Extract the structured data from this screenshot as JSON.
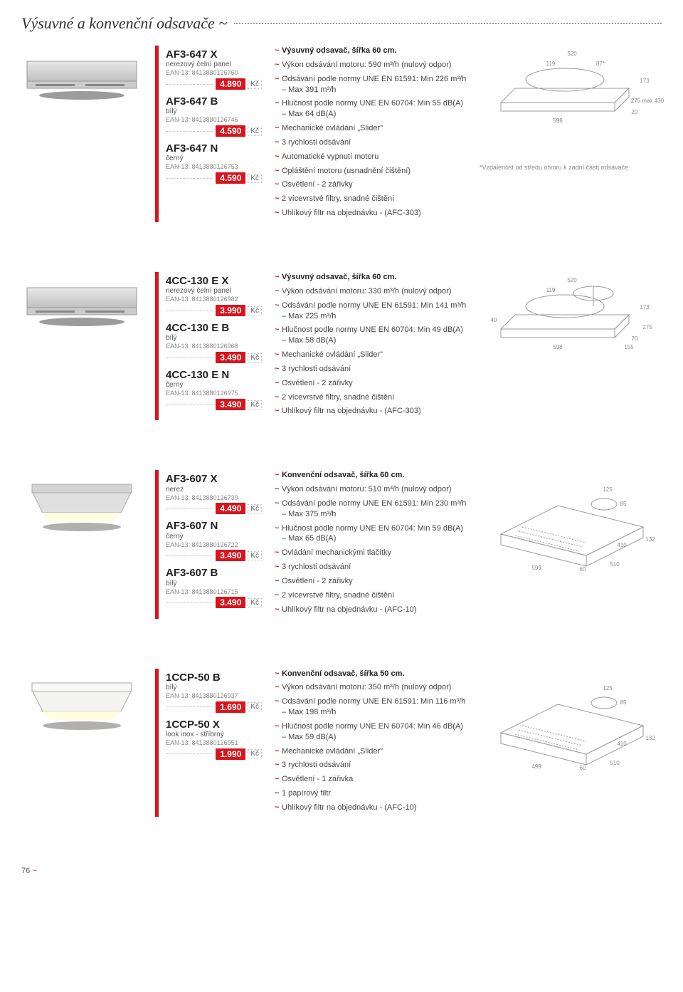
{
  "title": "Výsuvné a konvenční odsavače ~",
  "currency": "Kč",
  "pageNumber": "76",
  "products": [
    {
      "variants": [
        {
          "name": "AF3-647 X",
          "sub": "nerezový čelní panel",
          "ean": "EAN-13: 8413880126760",
          "price": "4.890"
        },
        {
          "name": "AF3-647 B",
          "sub": "bílý",
          "ean": "EAN-13: 8413880126746",
          "price": "4.590"
        },
        {
          "name": "AF3-647 N",
          "sub": "černý",
          "ean": "EAN-13: 8413880126753",
          "price": "4.590"
        }
      ],
      "features": [
        {
          "head": true,
          "text": "Výsuvný odsavač, šířka 60 cm."
        },
        {
          "text": "Výkon odsávání motoru: 590 m³/h (nulový odpor)"
        },
        {
          "text": "Odsávání podle normy UNE EN 61591: Min 226 m³/h – Max 391 m³/h"
        },
        {
          "text": "Hlučnost podle normy UNE EN 60704: Min 55 dB(A) – Max 64 dB(A)"
        },
        {
          "text": "Mechanické ovládání „Slider\""
        },
        {
          "text": "3 rychlosti odsávání"
        },
        {
          "text": "Automatické vypnutí motoru"
        },
        {
          "text": "Opláštění motoru (usnadnění čištění)"
        },
        {
          "text": "Osvětlení - 2 zářivky"
        },
        {
          "text": "2 vícevrstvé filtry, snadné čištění"
        },
        {
          "text": "Uhlíkový filtr na objednávku - (AFC-303)"
        }
      ],
      "dims": {
        "a": "598",
        "b": "520",
        "c": "119",
        "d": "87*",
        "e": "20",
        "f": "173",
        "g": "275 max 430"
      },
      "footnote": "*Vzdálenost od středu otvoru k zadní části odsavače"
    },
    {
      "variants": [
        {
          "name": "4CC-130 E X",
          "sub": "nerezový čelní panel",
          "ean": "EAN-13: 8413880126982",
          "price": "3.990"
        },
        {
          "name": "4CC-130 E B",
          "sub": "bílý",
          "ean": "EAN-13: 8413880126968",
          "price": "3.490"
        },
        {
          "name": "4CC-130 E N",
          "sub": "černý",
          "ean": "EAN-13: 8413880126975",
          "price": "3.490"
        }
      ],
      "features": [
        {
          "head": true,
          "text": "Výsuvný odsavač, šířka 60 cm."
        },
        {
          "text": "Výkon odsávání motoru: 330 m³/h (nulový odpor)"
        },
        {
          "text": "Odsávání podle normy UNE EN 61591: Min 141 m³/h – Max 225 m³/h"
        },
        {
          "text": "Hlučnost podle normy UNE EN 60704: Min 49 dB(A) – Max 58 dB(A)"
        },
        {
          "text": "Mechanické ovládání „Slider\""
        },
        {
          "text": "3 rychlosti odsávání"
        },
        {
          "text": "Osvětlení - 2 zářivky"
        },
        {
          "text": "2 vícevrstvé filtry, snadné čištění"
        },
        {
          "text": "Uhlíkový filtr na objednávku - (AFC-303)"
        }
      ],
      "dims": {
        "a": "598",
        "b": "520",
        "c": "119",
        "d": "40",
        "e": "20",
        "f": "173",
        "g": "275",
        "h": "155"
      }
    },
    {
      "variants": [
        {
          "name": "AF3-607 X",
          "sub": "nerez",
          "ean": "EAN-13: 8413880126739",
          "price": "4.490"
        },
        {
          "name": "AF3-607 N",
          "sub": "černý",
          "ean": "EAN-13: 8413880126722",
          "price": "3.490"
        },
        {
          "name": "AF3-607 B",
          "sub": "bílý",
          "ean": "EAN-13: 8413880126715",
          "price": "3.490"
        }
      ],
      "features": [
        {
          "head": true,
          "text": "Konvenční odsavač, šířka 60 cm."
        },
        {
          "text": "Výkon odsávání motoru: 510 m³/h (nulový odpor)"
        },
        {
          "text": "Odsávání podle normy UNE EN 61591: Min 230 m³/h – Max 375 m³/h"
        },
        {
          "text": "Hlučnost podle normy UNE EN 60704: Min 59 dB(A) – Max 65 dB(A)"
        },
        {
          "text": "Ovládání mechanickými tlačítky"
        },
        {
          "text": "3 rychlosti odsávání"
        },
        {
          "text": "Osvětlení - 2 zářivky"
        },
        {
          "text": "2 vícevrstvé filtry, snadné čištění"
        },
        {
          "text": "Uhlíkový filtr na objednávku - (AFC-10)"
        }
      ],
      "dims": {
        "a": "599",
        "b": "510",
        "c": "410",
        "d": "60",
        "e": "85",
        "f": "125",
        "g": "132"
      }
    },
    {
      "variants": [
        {
          "name": "1CCP-50 B",
          "sub": "bílý",
          "ean": "EAN-13: 8413880126937",
          "price": "1.690"
        },
        {
          "name": "1CCP-50 X",
          "sub": "look inox - stříbrný",
          "ean": "EAN-13: 8413880126951",
          "price": "1.990"
        }
      ],
      "features": [
        {
          "head": true,
          "text": "Konvenční odsavač, šířka 50 cm."
        },
        {
          "text": "Výkon odsávání motoru: 350 m³/h (nulový odpor)"
        },
        {
          "text": "Odsávání podle normy UNE EN 61591: Min 116 m³/h – Max 198 m³/h"
        },
        {
          "text": "Hlučnost podle normy UNE EN 60704: Min 46 dB(A) – Max 59 dB(A)"
        },
        {
          "text": "Mechanické ovládání „Slider\""
        },
        {
          "text": "3 rychlosti odsávání"
        },
        {
          "text": "Osvětlení - 1 zářivka"
        },
        {
          "text": "1 papírový filtr"
        },
        {
          "text": "Uhlíkový filtr na objednávku - (AFC-10)"
        }
      ],
      "dims": {
        "a": "499",
        "b": "510",
        "c": "410",
        "d": "60",
        "e": "85",
        "f": "125",
        "g": "132"
      }
    }
  ]
}
